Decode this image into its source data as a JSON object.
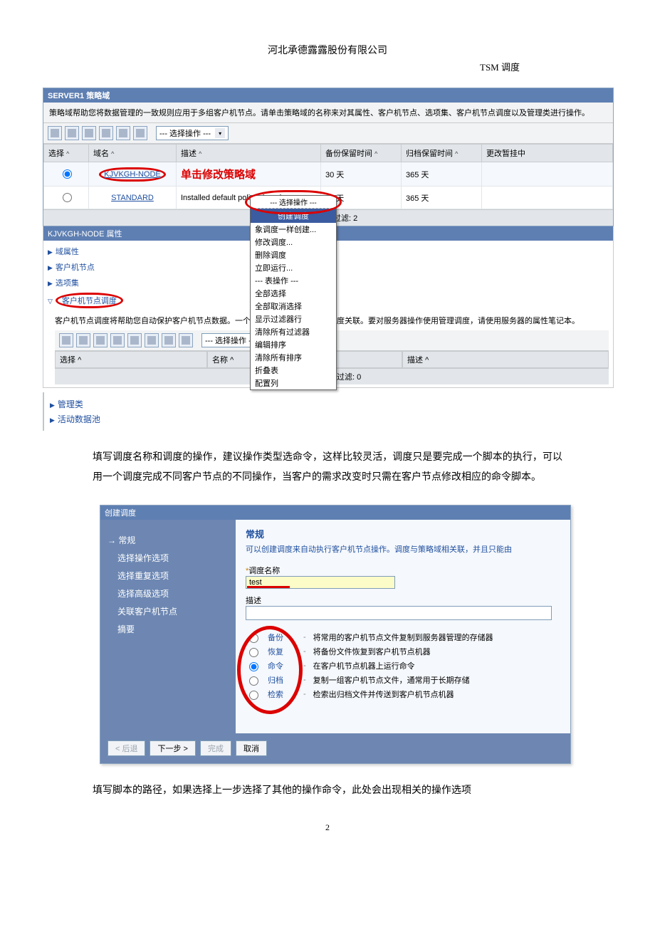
{
  "doc": {
    "company": "河北承德露露股份有限公司",
    "module": "TSM 调度",
    "page_number": "2"
  },
  "panel1": {
    "title": "SERVER1 策略域",
    "desc": "策略域帮助您将数据管理的一致规则应用于多组客户机节点。请单击策略域的名称来对其属性、客户机节点、选项集、客户机节点调度以及管理类进行操作。",
    "select_op": "--- 选择操作 ---",
    "cols": {
      "select": "选择",
      "domain": "域名",
      "desc": "描述",
      "backup": "备份保留时间",
      "archive": "归档保留时间",
      "upd": "更改暂挂中"
    },
    "rows": [
      {
        "domain": "KJVKGH-NODE",
        "desc_annot": "单击修改策略域",
        "backup": "30 天",
        "archive": "365 天"
      },
      {
        "domain": "STANDARD",
        "desc": "Installed default policy domain.",
        "backup": "30 天",
        "archive": "365 天"
      }
    ],
    "total": "总计: 2  已过滤: 2"
  },
  "dropdown": {
    "head_top": "--- 选择操作 ---",
    "highlight": "创建调度",
    "items": [
      "象调度一样创建...",
      "修改调度...",
      "删除调度",
      "立即运行...",
      "--- 表操作 ---",
      "全部选择",
      "全部取消选择",
      "显示过滤器行",
      "清除所有过滤器",
      "编辑排序",
      "清除所有排序",
      "折叠表",
      "配置列"
    ]
  },
  "attrs": {
    "title": "KJVKGH-NODE 属性",
    "tree": [
      "域属性",
      "客户机节点",
      "选项集",
      "客户机节点调度"
    ],
    "desc": "客户机节点调度将帮助您自动保护客户机节点数据。一个客户机节点可以与多个调度关联。要对服务器操作使用管理调度，请使用服务器的属性笔记本。",
    "cols": {
      "select": "选择",
      "name": "名称",
      "desc": "描述"
    },
    "total": "总计: 0  已过滤: 0",
    "mgmt": [
      "管理类",
      "活动数据池"
    ]
  },
  "para1": "填写调度名称和调度的操作，建议操作类型选命令，这样比较灵活，调度只是要完成一个脚本的执行，可以用一个调度完成不同客户节点的不同操作，当客户的需求改变时只需在客户节点修改相应的命令脚本。",
  "wizard": {
    "title": "创建调度",
    "steps": [
      "常规",
      "选择操作选项",
      "选择重复选项",
      "选择高级选项",
      "关联客户机节点",
      "摘要"
    ],
    "right_title": "常规",
    "right_sub": "可以创建调度来自动执行客户机节点操作。调度与策略域相关联，并且只能由",
    "fld_name": "调度名称",
    "fld_name_val": "test",
    "fld_desc": "描述",
    "radios": [
      {
        "lab": "备份",
        "txt": "将常用的客户机节点文件复制到服务器管理的存储器",
        "sel": false
      },
      {
        "lab": "恢复",
        "txt": "将备份文件恢复到客户机节点机器",
        "sel": false
      },
      {
        "lab": "命令",
        "txt": "在客户机节点机器上运行命令",
        "sel": true
      },
      {
        "lab": "归档",
        "txt": "复制一组客户机节点文件，通常用于长期存储",
        "sel": false
      },
      {
        "lab": "检索",
        "txt": "检索出归档文件并传送到客户机节点机器",
        "sel": false
      }
    ],
    "btns": {
      "back": "< 后退",
      "next": "下一步 >",
      "finish": "完成",
      "cancel": "取消"
    }
  },
  "para2": "填写脚本的路径，如果选择上一步选择了其他的操作命令，此处会出现相关的操作选项"
}
